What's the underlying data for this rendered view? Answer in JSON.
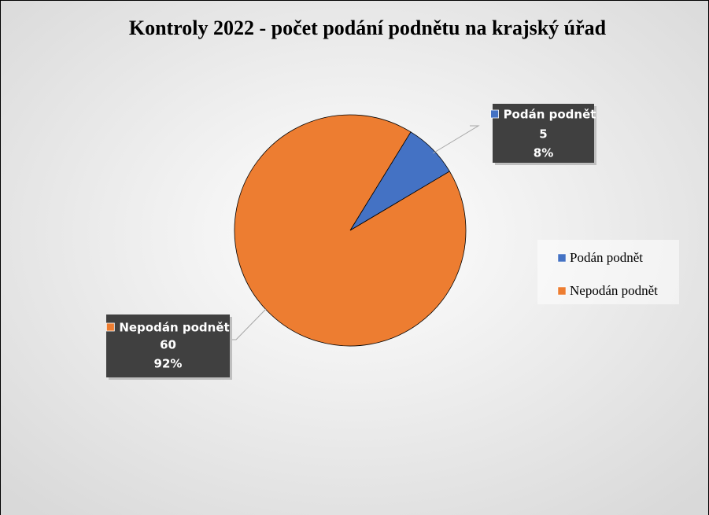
{
  "chart_data": {
    "type": "pie",
    "title": "Kontroly 2022 - počet podání podnětu na krajský úřad",
    "categories": [
      "Podán podnět",
      "Nepodán podnět"
    ],
    "values": [
      5,
      60
    ],
    "percent_labels": [
      "8%",
      "92%"
    ],
    "colors": [
      "#4472c4",
      "#ed7d31"
    ],
    "legend": "right"
  }
}
